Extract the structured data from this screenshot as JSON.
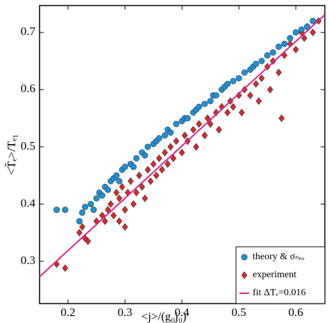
{
  "chart_data": {
    "type": "scatter",
    "x_label": "<j>/(g₀j₀)",
    "y_label": "<T̃ₑ>/Tₑ₁",
    "xlim": [
      0.15,
      0.651
    ],
    "ylim": [
      0.226,
      0.747
    ],
    "xticks": [
      0.2,
      0.3,
      0.4,
      0.5,
      0.6
    ],
    "yticks": [
      0.3,
      0.4,
      0.5,
      0.6,
      0.7
    ],
    "legend": "lower right",
    "series": [
      {
        "name": "theory & σₙₑₒ",
        "color": "#1e90d8",
        "marker": "circle",
        "x": [
          0.18,
          0.195,
          0.22,
          0.225,
          0.23,
          0.24,
          0.245,
          0.25,
          0.255,
          0.26,
          0.265,
          0.27,
          0.275,
          0.28,
          0.285,
          0.29,
          0.295,
          0.3,
          0.31,
          0.315,
          0.32,
          0.33,
          0.335,
          0.34,
          0.35,
          0.355,
          0.36,
          0.37,
          0.375,
          0.38,
          0.39,
          0.4,
          0.405,
          0.41,
          0.42,
          0.425,
          0.43,
          0.44,
          0.45,
          0.455,
          0.46,
          0.47,
          0.475,
          0.48,
          0.49,
          0.5,
          0.51,
          0.52,
          0.525,
          0.53,
          0.54,
          0.55,
          0.56,
          0.57,
          0.58,
          0.59,
          0.6,
          0.61,
          0.62,
          0.63
        ],
        "values": [
          0.39,
          0.39,
          0.37,
          0.385,
          0.395,
          0.4,
          0.39,
          0.41,
          0.42,
          0.415,
          0.43,
          0.425,
          0.44,
          0.445,
          0.45,
          0.44,
          0.46,
          0.465,
          0.47,
          0.465,
          0.48,
          0.49,
          0.485,
          0.5,
          0.505,
          0.51,
          0.515,
          0.52,
          0.53,
          0.525,
          0.54,
          0.545,
          0.55,
          0.55,
          0.56,
          0.565,
          0.57,
          0.575,
          0.58,
          0.59,
          0.59,
          0.6,
          0.605,
          0.61,
          0.615,
          0.62,
          0.63,
          0.635,
          0.64,
          0.645,
          0.65,
          0.66,
          0.665,
          0.675,
          0.68,
          0.69,
          0.7,
          0.705,
          0.71,
          0.72
        ]
      },
      {
        "name": "experiment",
        "color": "#d42a2a",
        "marker": "diamond",
        "x": [
          0.18,
          0.195,
          0.22,
          0.225,
          0.23,
          0.235,
          0.25,
          0.26,
          0.265,
          0.27,
          0.275,
          0.28,
          0.285,
          0.29,
          0.29,
          0.295,
          0.3,
          0.3,
          0.305,
          0.31,
          0.315,
          0.32,
          0.325,
          0.33,
          0.335,
          0.34,
          0.345,
          0.35,
          0.355,
          0.36,
          0.365,
          0.37,
          0.375,
          0.38,
          0.385,
          0.39,
          0.4,
          0.405,
          0.41,
          0.42,
          0.425,
          0.43,
          0.44,
          0.445,
          0.45,
          0.46,
          0.465,
          0.47,
          0.48,
          0.485,
          0.49,
          0.5,
          0.505,
          0.51,
          0.52,
          0.53,
          0.535,
          0.54,
          0.55,
          0.555,
          0.56,
          0.57,
          0.575,
          0.58,
          0.59,
          0.6,
          0.61,
          0.615,
          0.62,
          0.63,
          0.64
        ],
        "values": [
          0.295,
          0.288,
          0.35,
          0.36,
          0.34,
          0.335,
          0.37,
          0.38,
          0.37,
          0.39,
          0.4,
          0.38,
          0.42,
          0.37,
          0.41,
          0.43,
          0.39,
          0.36,
          0.42,
          0.44,
          0.4,
          0.42,
          0.45,
          0.43,
          0.41,
          0.46,
          0.44,
          0.47,
          0.45,
          0.48,
          0.46,
          0.49,
          0.47,
          0.5,
          0.48,
          0.51,
          0.49,
          0.52,
          0.51,
          0.53,
          0.5,
          0.54,
          0.52,
          0.55,
          0.54,
          0.56,
          0.53,
          0.57,
          0.56,
          0.58,
          0.57,
          0.59,
          0.56,
          0.6,
          0.59,
          0.61,
          0.58,
          0.62,
          0.64,
          0.6,
          0.65,
          0.63,
          0.55,
          0.66,
          0.68,
          0.67,
          0.7,
          0.69,
          0.71,
          0.7,
          0.72
        ]
      },
      {
        "name": "fit ΔTₑ=0.016",
        "color": "#e0208c",
        "marker": "line",
        "x": [
          0.15,
          0.651
        ],
        "values": [
          0.273,
          0.731
        ]
      }
    ]
  }
}
